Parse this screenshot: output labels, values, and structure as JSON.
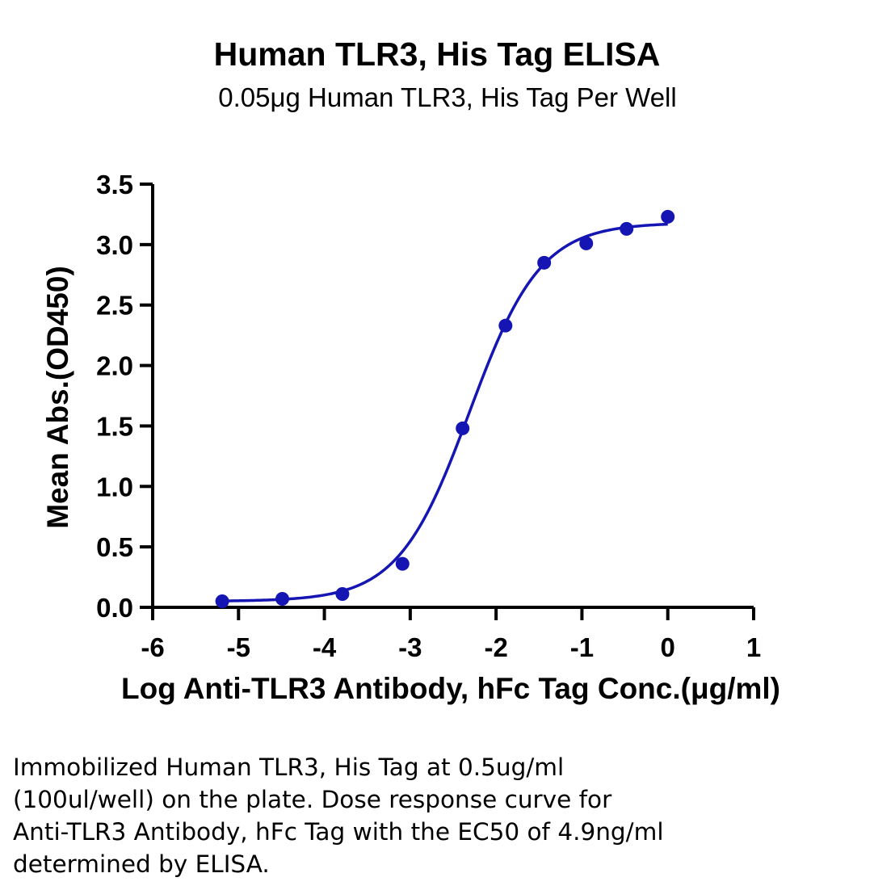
{
  "chart_data": {
    "type": "scatter",
    "title": "Human TLR3, His Tag ELISA",
    "subtitle": "0.05μg Human TLR3, His Tag Per Well",
    "xlabel": "Log Anti-TLR3 Antibody, hFc Tag Conc.(μg/ml)",
    "ylabel": "Mean Abs.(OD450)",
    "xlim": [
      -6,
      1
    ],
    "ylim": [
      0,
      3.5
    ],
    "x_ticks": [
      "-6",
      "-5",
      "-4",
      "-3",
      "-2",
      "-1",
      "0",
      "1"
    ],
    "y_ticks": [
      "0.0",
      "0.5",
      "1.0",
      "1.5",
      "2.0",
      "2.5",
      "3.0",
      "3.5"
    ],
    "grid": false,
    "color": "#1515b4",
    "series": [
      {
        "x": [
          -5.19,
          -4.49,
          -3.79,
          -3.09,
          -2.39,
          -1.89,
          -1.44,
          -0.95,
          -0.48,
          0.0
        ],
        "y": [
          0.05,
          0.07,
          0.11,
          0.36,
          1.48,
          2.33,
          2.85,
          3.01,
          3.13,
          3.23
        ]
      }
    ],
    "fit": {
      "model": "4PL",
      "bottom": 0.05,
      "top": 3.18,
      "logEC50": -2.31,
      "hill": 1.05
    }
  },
  "caption": {
    "lines": [
      "Immobilized Human TLR3, His Tag at 0.5ug/ml",
      "(100ul/well) on the plate. Dose response curve for",
      "Anti-TLR3 Antibody, hFc Tag with the EC50 of 4.9ng/ml",
      "determined by ELISA."
    ]
  }
}
